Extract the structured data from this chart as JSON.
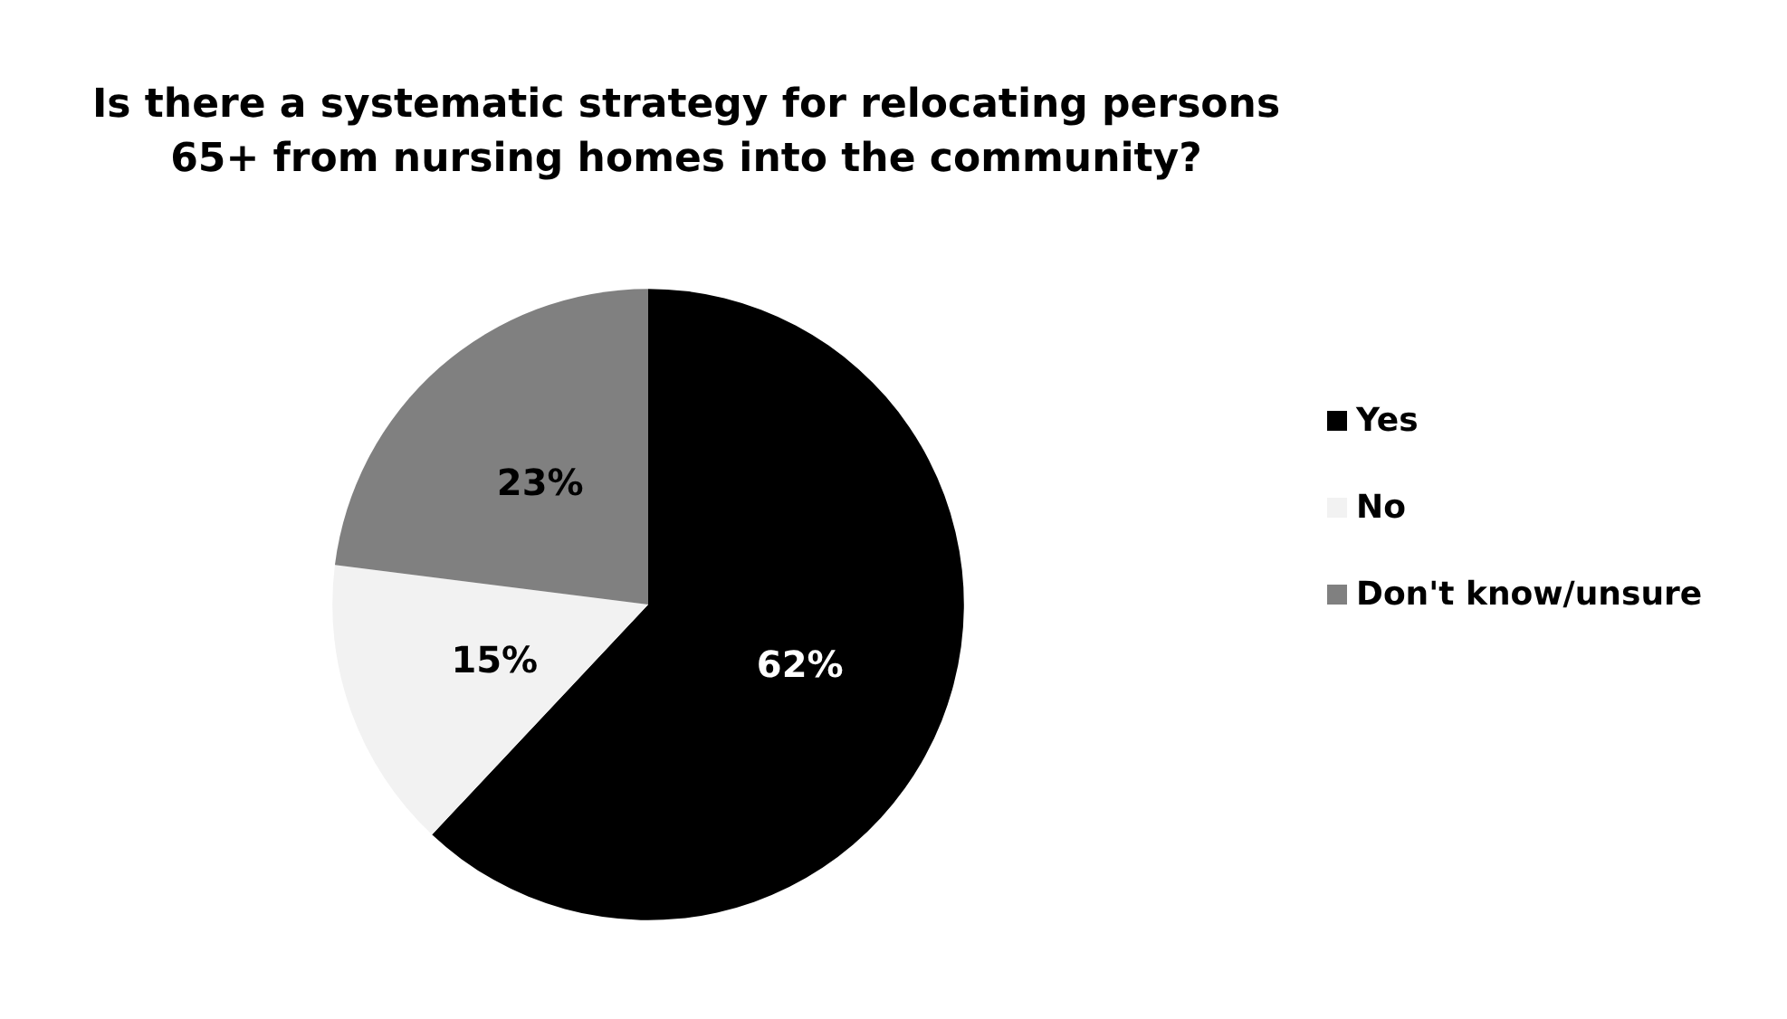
{
  "chart_data": {
    "type": "pie",
    "title": "Is there a systematic strategy for relocating persons\n65+ from nursing homes into the community?",
    "categories": [
      "Yes",
      "No",
      "Don't know/unsure"
    ],
    "values": [
      62,
      15,
      23
    ],
    "colors": [
      "#000000",
      "#f2f2f2",
      "#808080"
    ],
    "value_labels": [
      "62%",
      "15%",
      "23%"
    ],
    "legend": "right"
  }
}
